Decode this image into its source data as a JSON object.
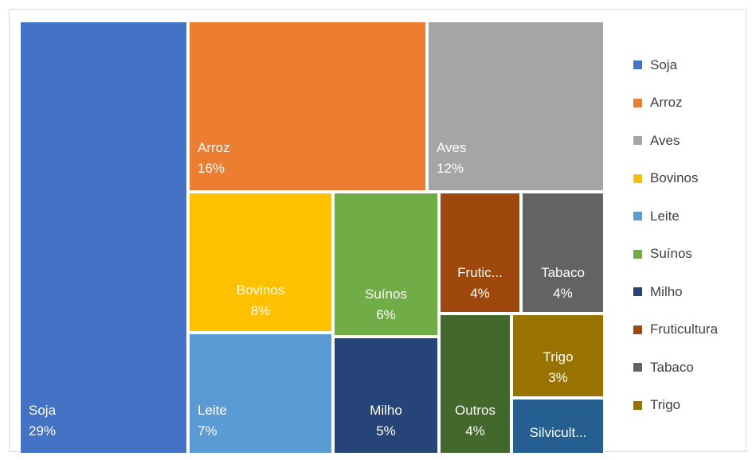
{
  "chart_data": {
    "type": "treemap",
    "items": [
      {
        "key": "soja",
        "label": "Soja",
        "value": "29%",
        "color": "#4472C4"
      },
      {
        "key": "arroz",
        "label": "Arroz",
        "value": "16%",
        "color": "#ED7D31"
      },
      {
        "key": "aves",
        "label": "Aves",
        "value": "12%",
        "color": "#A5A5A5"
      },
      {
        "key": "bovinos",
        "label": "Bovinos",
        "value": "8%",
        "color": "#FFC000"
      },
      {
        "key": "leite",
        "label": "Leite",
        "value": "7%",
        "color": "#5B9BD5"
      },
      {
        "key": "suinos",
        "label": "Suínos",
        "value": "6%",
        "color": "#70AD47"
      },
      {
        "key": "milho",
        "label": "Milho",
        "value": "5%",
        "color": "#264478"
      },
      {
        "key": "fruticultura",
        "label": "Frutic...",
        "value": "4%",
        "color": "#9E480E"
      },
      {
        "key": "tabaco",
        "label": "Tabaco",
        "value": "4%",
        "color": "#636363"
      },
      {
        "key": "outros",
        "label": "Outros",
        "value": "4%",
        "color": "#43682B"
      },
      {
        "key": "trigo",
        "label": "Trigo",
        "value": "3%",
        "color": "#997300"
      },
      {
        "key": "silvicultura",
        "label": "Silvicult...",
        "value": "",
        "color": "#255E91"
      }
    ],
    "legend": [
      {
        "label": "Soja",
        "color": "#4472C4"
      },
      {
        "label": "Arroz",
        "color": "#ED7D31"
      },
      {
        "label": "Aves",
        "color": "#A5A5A5"
      },
      {
        "label": "Bovinos",
        "color": "#FFC000"
      },
      {
        "label": "Leite",
        "color": "#5B9BD5"
      },
      {
        "label": "Suínos",
        "color": "#70AD47"
      },
      {
        "label": "Milho",
        "color": "#264478"
      },
      {
        "label": "Fruticultura",
        "color": "#9E480E"
      },
      {
        "label": "Tabaco",
        "color": "#636363"
      },
      {
        "label": "Trigo",
        "color": "#997300"
      }
    ],
    "legend_position": "right"
  }
}
